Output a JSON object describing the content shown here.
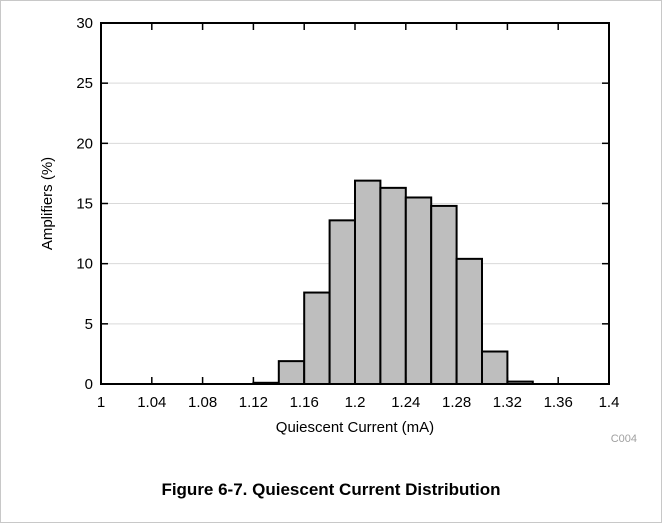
{
  "caption": "Figure 6-7. Quiescent Current Distribution",
  "figure_code": "C004",
  "chart_data": {
    "type": "bar",
    "xlabel": "Quiescent Current (mA)",
    "ylabel": "Amplifiers (%)",
    "xlim": [
      1,
      1.4
    ],
    "ylim": [
      0,
      30
    ],
    "xticks": [
      1,
      1.04,
      1.08,
      1.12,
      1.16,
      1.2,
      1.24,
      1.28,
      1.32,
      1.36,
      1.4
    ],
    "xtick_labels": [
      "1",
      "1.04",
      "1.08",
      "1.12",
      "1.16",
      "1.2",
      "1.24",
      "1.28",
      "1.32",
      "1.36",
      "1.4"
    ],
    "yticks": [
      0,
      5,
      10,
      15,
      20,
      25,
      30
    ],
    "ytick_labels": [
      "0",
      "5",
      "10",
      "15",
      "20",
      "25",
      "30"
    ],
    "bin_width": 0.02,
    "bin_starts": [
      1.0,
      1.02,
      1.04,
      1.06,
      1.08,
      1.1,
      1.12,
      1.14,
      1.16,
      1.18,
      1.2,
      1.22,
      1.24,
      1.26,
      1.28,
      1.3,
      1.32,
      1.34,
      1.36,
      1.38
    ],
    "values": [
      0,
      0,
      0,
      0,
      0,
      0,
      0.1,
      1.9,
      7.6,
      13.6,
      16.9,
      16.3,
      15.5,
      14.8,
      10.4,
      2.7,
      0.2,
      0,
      0,
      0
    ],
    "grid": true,
    "bar_color": "#bebebe",
    "bar_edge_color": "#000000",
    "grid_color": "#d9d9d9"
  }
}
